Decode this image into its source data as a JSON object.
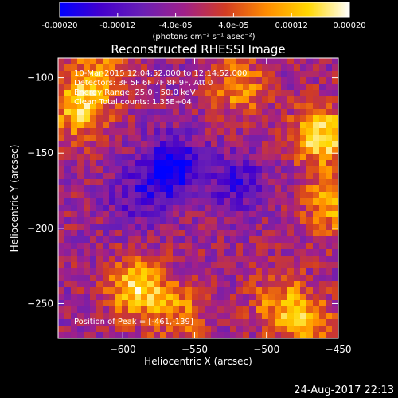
{
  "chart_data": {
    "type": "heatmap",
    "title": "Reconstructed RHESSI Image",
    "xlabel": "Heliocentric X (arcsec)",
    "ylabel": "Heliocentric Y (arcsec)",
    "xlim": [
      -645,
      -450
    ],
    "ylim": [
      -273,
      -87
    ],
    "xticks": [
      -600,
      -550,
      -500,
      -450
    ],
    "yticks": [
      -100,
      -150,
      -200,
      -250
    ],
    "colorbar": {
      "min": -0.0002,
      "max": 0.0002,
      "ticks": [
        -0.0002,
        -0.00012,
        -4e-05,
        4e-05,
        0.00012,
        0.0002
      ],
      "tick_labels": [
        "-0.00020",
        "-0.00012",
        "-4.0e-05",
        "4.0e-05",
        "0.00012",
        "0.00020"
      ],
      "label": "(photons cm⁻² s⁻¹ asec⁻²)",
      "colormap": [
        "#0000ff",
        "#4400cc",
        "#6a1fb5",
        "#a0208a",
        "#d23c23",
        "#ff8c00",
        "#ffd700",
        "#ffffff"
      ]
    },
    "annotations": {
      "time": "10-Mar-2015 12:04:52.000 to 12:14:52.000",
      "detectors": "Detectors: 3F 5F 6F 7F 8F 9F, Att 0",
      "energy": "Energy Range: 25.0 - 50.0 keV",
      "clean": "Clean    Total counts: 1.35E+04",
      "peak": "Position of Peak = [-461,-139]"
    },
    "peak": [
      -461,
      -139
    ],
    "hotspots": [
      {
        "x": -461,
        "y": -139,
        "value": 0.0002
      },
      {
        "x": -455,
        "y": -185,
        "value": 0.00014
      },
      {
        "x": -590,
        "y": -240,
        "value": 0.00018
      },
      {
        "x": -630,
        "y": -120,
        "value": 0.00017
      },
      {
        "x": -560,
        "y": -255,
        "value": 0.0001
      },
      {
        "x": -520,
        "y": -105,
        "value": 0.00012
      },
      {
        "x": -490,
        "y": -250,
        "value": 0.00012
      },
      {
        "x": -470,
        "y": -265,
        "value": 0.00011
      },
      {
        "x": -615,
        "y": -95,
        "value": 0.0001
      }
    ],
    "coldspots": [
      {
        "x": -565,
        "y": -160,
        "value": -0.00018
      },
      {
        "x": -520,
        "y": -170,
        "value": -0.0001
      },
      {
        "x": -590,
        "y": -180,
        "value": -8e-05
      }
    ]
  },
  "footer": {
    "date": "24-Aug-2017 22:13"
  }
}
